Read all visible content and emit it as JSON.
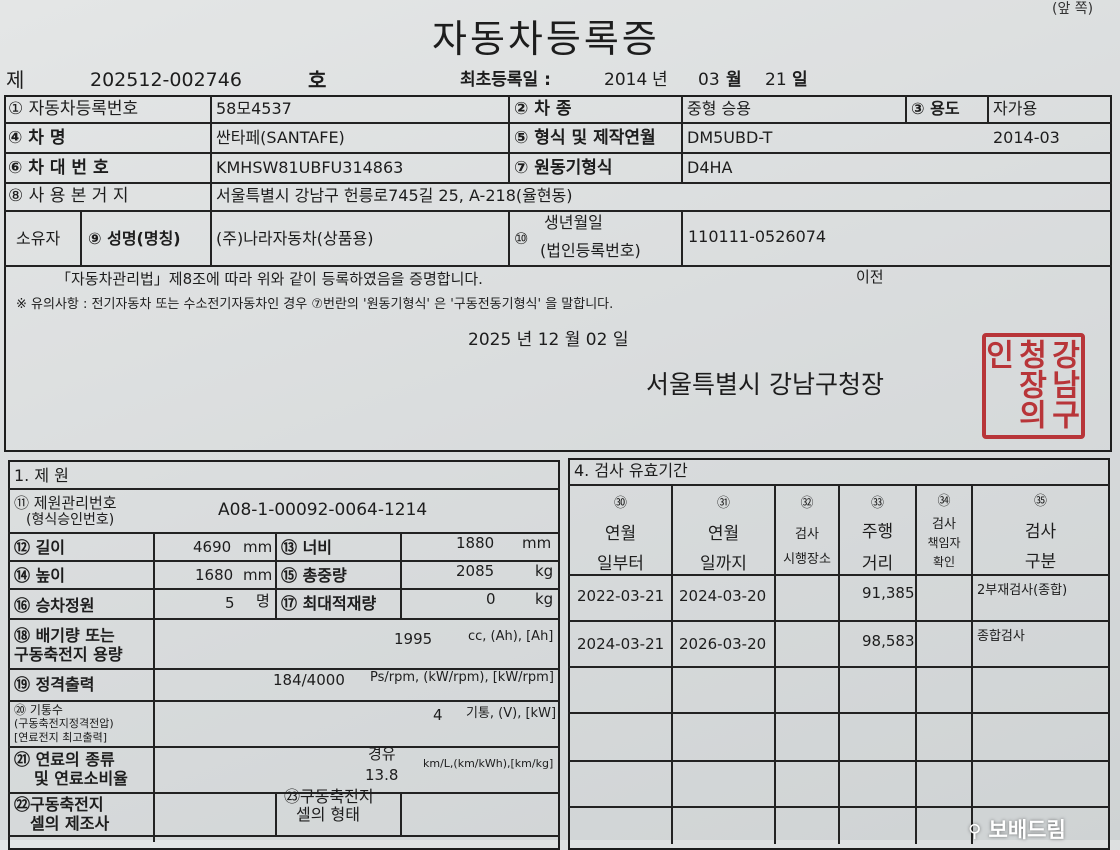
{
  "corner_label": "(앞 쪽)",
  "title": "자동차등록증",
  "header": {
    "prefix": "제",
    "number": "202512-002746",
    "suffix": "호",
    "first_reg_label": "최초등록일 :",
    "first_reg_year": "2014",
    "year_unit": "년",
    "first_reg_month": "03",
    "month_unit": "월",
    "first_reg_day": "21",
    "day_unit": "일"
  },
  "registration": {
    "reg_no_label": "① 자동차등록번호",
    "reg_no": "58모4537",
    "type_label": "② 차 종",
    "type": "중형 승용",
    "use_label": "③ 용도",
    "use": "자가용",
    "name_label": "④ 차 명",
    "name": "싼타페(SANTAFE)",
    "model_label": "⑤ 형식 및 제작연월",
    "model": "DM5UBD-T",
    "made": "2014-03",
    "vin_label": "⑥ 차 대 번 호",
    "vin": "KMHSW81UBFU314863",
    "engine_label": "⑦ 원동기형식",
    "engine": "D4HA",
    "address_label": "⑧ 사 용 본 거 지",
    "address": "서울특별시 강남구 헌릉로745길 25, A-218(율현동)",
    "owner_label": "소유자",
    "owner_name_label": "⑨ 성명(명칭)",
    "owner_name": "(주)나라자동차(상품용)",
    "id_num_mark": "⑩",
    "id_label_1": "생년월일",
    "id_label_2": "(법인등록번호)",
    "id_number": "110111-0526074"
  },
  "certification": {
    "statement": "「자동차관리법」제8조에 따라 위와 같이 등록하였음을 증명합니다.",
    "transfer_note": "이전",
    "notice": "※ 유의사항 : 전기자동차 또는 수소전기자동차인 경우 ⑦번란의 '원동기형식' 은 '구동전동기형식' 을 말합니다.",
    "date": "2025 년 12 월 02 일",
    "issuer": "서울특별시 강남구청장",
    "seal_text": "강남구청장의인",
    "seal_color": "#b3191d"
  },
  "specs": {
    "section_title": "1. 제 원",
    "mgmt_label_1": "⑪ 제원관리번호",
    "mgmt_label_2": "(형식승인번호)",
    "mgmt_no": "A08-1-00092-0064-1214",
    "length_label": "⑫ 길이",
    "length": "4690",
    "length_unit": "mm",
    "width_label": "⑬ 너비",
    "width": "1880",
    "width_unit": "mm",
    "height_label": "⑭ 높이",
    "height": "1680",
    "height_unit": "mm",
    "gross_label": "⑮ 총중량",
    "gross": "2085",
    "gross_unit": "kg",
    "seats_label": "⑯ 승차정원",
    "seats": "5",
    "seats_unit": "명",
    "load_label": "⑰ 최대적재량",
    "load": "0",
    "load_unit": "kg",
    "disp_label_1": "⑱ 배기량 또는",
    "disp_label_2": "구동축전지 용량",
    "disp": "1995",
    "disp_unit": "cc, (Ah), [Ah]",
    "power_label": "⑲ 정격출력",
    "power": "184/4000",
    "power_unit": "Ps/rpm, (kW/rpm), [kW/rpm]",
    "cyl_label_1": "⑳ 기통수",
    "cyl_label_2": "(구동축전지정격전압)",
    "cyl_label_3": "[연료전지 최고출력]",
    "cyl": "4",
    "cyl_unit": "기통, (V), [kW]",
    "fuel_label_1": "㉑ 연료의 종류",
    "fuel_label_2": "및 연료소비율",
    "fuel_type": "경유",
    "fuel_eff": "13.8",
    "fuel_unit": "km/L,(km/kWh),[km/kg]",
    "cell_maker_label_1": "㉒구동축전지",
    "cell_maker_label_2": "셀의 제조사",
    "cell_form_label_1": "㉓구동축전지",
    "cell_form_label_2": "셀의 형태"
  },
  "inspection": {
    "section_title": "4. 검사 유효기간",
    "columns": [
      {
        "num": "㉚",
        "l1": "연월",
        "l2": "일부터"
      },
      {
        "num": "㉛",
        "l1": "연월",
        "l2": "일까지"
      },
      {
        "num": "㉜",
        "l1": "검사",
        "l2": "시행장소"
      },
      {
        "num": "㉝",
        "l1": "주행",
        "l2": "거리"
      },
      {
        "num": "㉞",
        "l1": "검사",
        "l2": "책임자",
        "l3": "확인"
      },
      {
        "num": "㉟",
        "l1": "검사",
        "l2": "구분"
      }
    ],
    "rows": [
      {
        "from": "2022-03-21",
        "to": "2024-03-20",
        "place": "",
        "mileage": "91,385",
        "officer": "",
        "kind": "2부재검사(종합)"
      },
      {
        "from": "2024-03-21",
        "to": "2026-03-20",
        "place": "",
        "mileage": "98,583",
        "officer": "",
        "kind": "종합검사"
      }
    ]
  },
  "watermark": "보배드림"
}
